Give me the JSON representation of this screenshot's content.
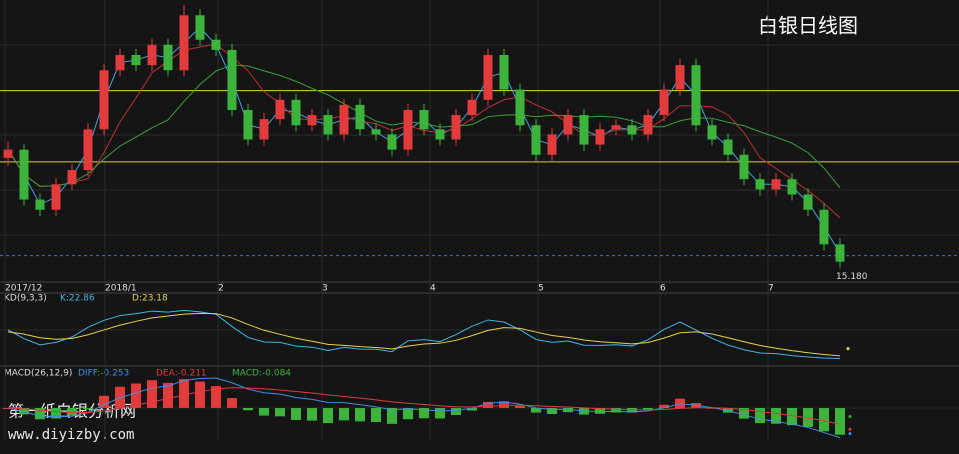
{
  "chart_data": {
    "type": "candlestick",
    "title": "白银日线图",
    "up_color": "#e23b3b",
    "down_color": "#3cb43c",
    "level_color": "#d8d82a",
    "ylim": [
      15.0,
      17.75
    ],
    "levels": [
      16.86,
      16.16
    ],
    "last_price": {
      "value": 15.18,
      "label": "15.180"
    },
    "date_labels": [
      "2017/12",
      "2018/1",
      "2",
      "3",
      "4",
      "5",
      "6",
      "7"
    ],
    "candles": [
      [
        16.2,
        16.36,
        16.12,
        16.28
      ],
      [
        16.28,
        16.34,
        15.73,
        15.79
      ],
      [
        15.79,
        15.85,
        15.63,
        15.69
      ],
      [
        15.69,
        16.0,
        15.63,
        15.94
      ],
      [
        15.94,
        16.14,
        15.88,
        16.08
      ],
      [
        16.08,
        16.54,
        16.02,
        16.48
      ],
      [
        16.48,
        17.12,
        16.42,
        17.06
      ],
      [
        17.06,
        17.27,
        17.0,
        17.21
      ],
      [
        17.21,
        17.27,
        17.05,
        17.11
      ],
      [
        17.11,
        17.37,
        17.05,
        17.31
      ],
      [
        17.31,
        17.37,
        17.0,
        17.06
      ],
      [
        17.06,
        17.7,
        17.0,
        17.6
      ],
      [
        17.6,
        17.66,
        17.3,
        17.36
      ],
      [
        17.36,
        17.42,
        17.2,
        17.26
      ],
      [
        17.26,
        17.32,
        16.61,
        16.67
      ],
      [
        16.67,
        16.73,
        16.32,
        16.38
      ],
      [
        16.38,
        16.64,
        16.32,
        16.58
      ],
      [
        16.58,
        16.83,
        16.52,
        16.77
      ],
      [
        16.77,
        16.83,
        16.46,
        16.52
      ],
      [
        16.52,
        16.68,
        16.46,
        16.62
      ],
      [
        16.62,
        16.68,
        16.37,
        16.43
      ],
      [
        16.43,
        16.78,
        16.37,
        16.72
      ],
      [
        16.72,
        16.78,
        16.42,
        16.48
      ],
      [
        16.48,
        16.54,
        16.37,
        16.43
      ],
      [
        16.43,
        16.49,
        16.22,
        16.28
      ],
      [
        16.28,
        16.73,
        16.22,
        16.67
      ],
      [
        16.67,
        16.73,
        16.42,
        16.48
      ],
      [
        16.48,
        16.54,
        16.32,
        16.38
      ],
      [
        16.38,
        16.68,
        16.32,
        16.62
      ],
      [
        16.62,
        16.83,
        16.56,
        16.77
      ],
      [
        16.77,
        17.27,
        16.71,
        17.21
      ],
      [
        17.21,
        17.27,
        16.81,
        16.87
      ],
      [
        16.87,
        16.93,
        16.46,
        16.52
      ],
      [
        16.52,
        16.58,
        16.17,
        16.23
      ],
      [
        16.23,
        16.49,
        16.17,
        16.43
      ],
      [
        16.43,
        16.68,
        16.37,
        16.62
      ],
      [
        16.62,
        16.68,
        16.27,
        16.33
      ],
      [
        16.33,
        16.54,
        16.27,
        16.48
      ],
      [
        16.48,
        16.58,
        16.42,
        16.52
      ],
      [
        16.52,
        16.58,
        16.37,
        16.43
      ],
      [
        16.43,
        16.68,
        16.37,
        16.62
      ],
      [
        16.62,
        16.93,
        16.56,
        16.87
      ],
      [
        16.87,
        17.17,
        16.81,
        17.11
      ],
      [
        17.11,
        17.17,
        16.46,
        16.52
      ],
      [
        16.52,
        16.58,
        16.32,
        16.38
      ],
      [
        16.38,
        16.44,
        16.17,
        16.23
      ],
      [
        16.23,
        16.29,
        15.93,
        15.99
      ],
      [
        15.99,
        16.05,
        15.83,
        15.89
      ],
      [
        15.89,
        16.05,
        15.83,
        15.99
      ],
      [
        15.99,
        16.05,
        15.78,
        15.84
      ],
      [
        15.84,
        15.9,
        15.63,
        15.69
      ],
      [
        15.69,
        15.75,
        15.29,
        15.35
      ],
      [
        15.35,
        15.41,
        15.12,
        15.18
      ]
    ],
    "kd": {
      "label": "KD(9,3,3)",
      "params": [
        9,
        3,
        3
      ],
      "k": {
        "value": 22.86,
        "label": "K:22.86",
        "color": "#3fb6e6"
      },
      "d": {
        "value": 23.18,
        "label": "D:23.18",
        "color": "#e6d24a"
      }
    },
    "macd": {
      "label": "MACD(26,12,9)",
      "params": [
        26,
        12,
        9
      ],
      "diff": {
        "value": -0.253,
        "label": "DIFF:-0.253",
        "color": "#3f8fe6"
      },
      "dea": {
        "value": -0.211,
        "label": "DEA:-0.211",
        "color": "#e23b3b"
      },
      "macd": {
        "value": -0.084,
        "label": "MACD:-0.084",
        "color": "#3cb43c"
      }
    }
  },
  "watermark": {
    "line1": "第一纸白银分析网",
    "line2": "www.diyizby.com"
  }
}
